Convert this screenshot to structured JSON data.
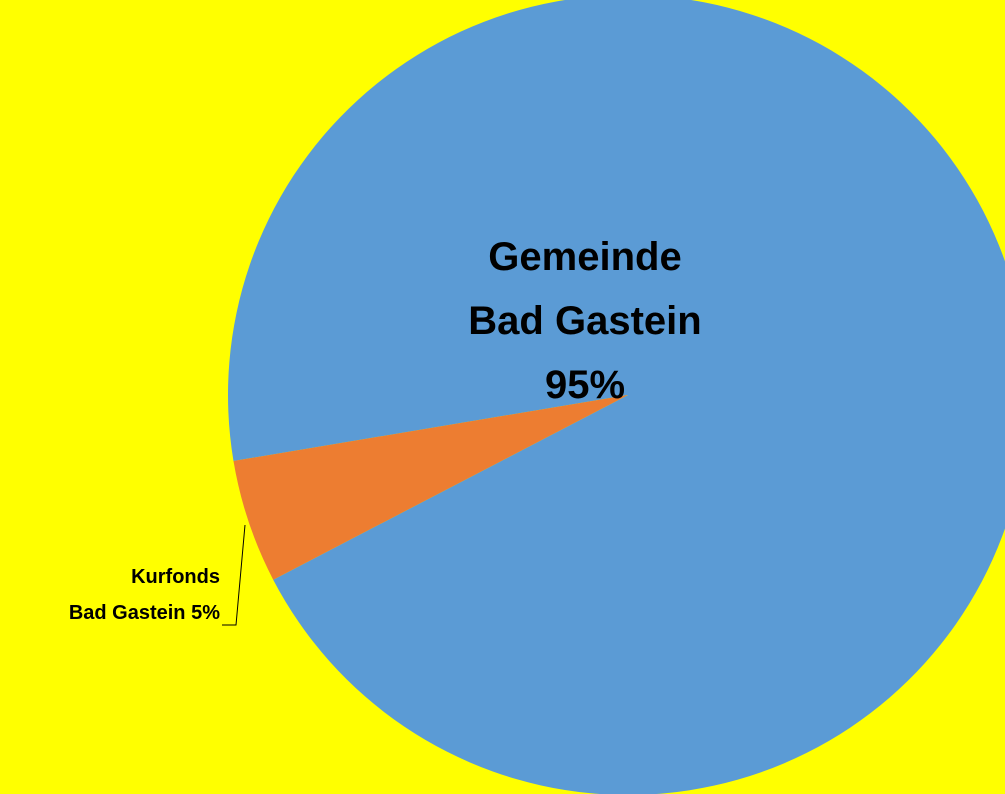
{
  "chart_data": {
    "type": "pie",
    "categories": [
      "Gemeinde Bad Gastein",
      "Kurfonds Bad Gastein"
    ],
    "values": [
      95,
      5
    ],
    "value_labels": [
      "95%",
      "5%"
    ],
    "colors": [
      "#5b9bd5",
      "#ed7d31"
    ]
  }
}
